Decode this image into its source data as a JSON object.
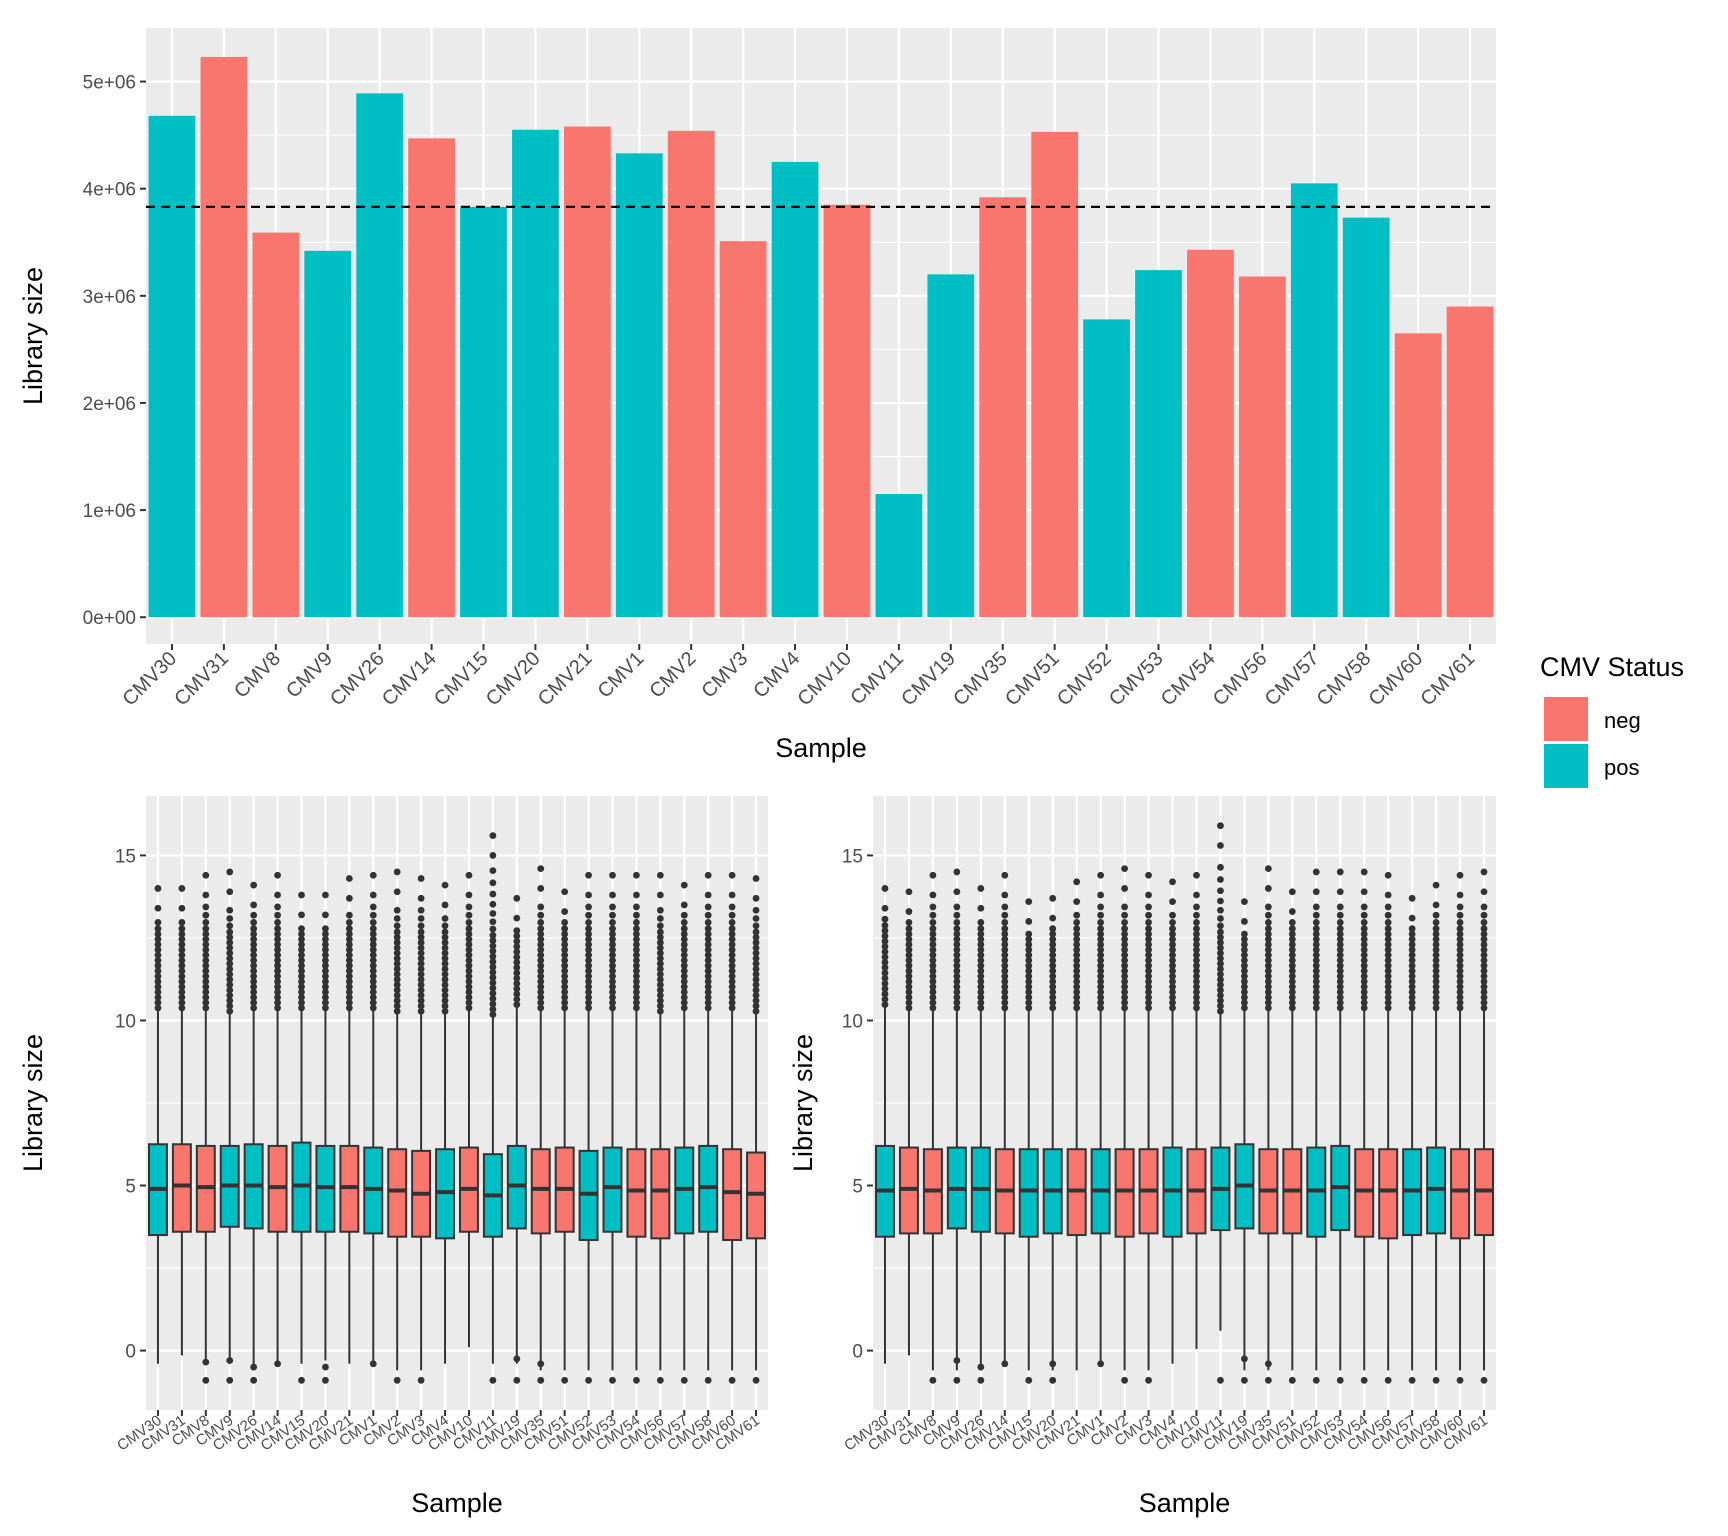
{
  "colors": {
    "neg": "#F8766D",
    "pos": "#00BFC4",
    "panel_bg": "#EBEBEB",
    "grid": "#FFFFFF",
    "text_dark": "#000000",
    "tick_text": "#4D4D4D",
    "box_line": "#333333"
  },
  "legend": {
    "title": "CMV Status",
    "items": [
      {
        "key": "neg",
        "label": "neg"
      },
      {
        "key": "pos",
        "label": "pos"
      }
    ]
  },
  "chart_data": [
    {
      "type": "bar",
      "xlabel": "Sample",
      "ylabel": "Library size",
      "ylim": [
        -250000,
        5500000
      ],
      "yticks": [
        0,
        1000000,
        2000000,
        3000000,
        4000000,
        5000000
      ],
      "ytick_labels": [
        "0e+00",
        "1e+06",
        "2e+06",
        "3e+06",
        "4e+06",
        "5e+06"
      ],
      "reference_line": {
        "y": 3830000,
        "style": "dashed"
      },
      "categories": [
        "CMV30",
        "CMV31",
        "CMV8",
        "CMV9",
        "CMV26",
        "CMV14",
        "CMV15",
        "CMV20",
        "CMV21",
        "CMV1",
        "CMV2",
        "CMV3",
        "CMV4",
        "CMV10",
        "CMV11",
        "CMV19",
        "CMV35",
        "CMV51",
        "CMV52",
        "CMV53",
        "CMV54",
        "CMV56",
        "CMV57",
        "CMV58",
        "CMV60",
        "CMV61"
      ],
      "values": [
        4680000,
        5230000,
        3590000,
        3420000,
        4890000,
        4470000,
        3830000,
        4550000,
        4580000,
        4330000,
        4540000,
        3510000,
        4250000,
        3850000,
        1150000,
        3200000,
        3920000,
        4530000,
        2780000,
        3240000,
        3430000,
        3180000,
        4050000,
        3730000,
        2650000,
        2900000
      ],
      "status": [
        "pos",
        "neg",
        "neg",
        "pos",
        "pos",
        "neg",
        "pos",
        "pos",
        "neg",
        "pos",
        "neg",
        "neg",
        "pos",
        "neg",
        "pos",
        "pos",
        "neg",
        "neg",
        "pos",
        "pos",
        "neg",
        "neg",
        "pos",
        "pos",
        "neg",
        "neg"
      ]
    },
    {
      "type": "box",
      "xlabel": "Sample",
      "ylabel": "Library size",
      "ylim": [
        -1.8,
        16.8
      ],
      "yticks": [
        0,
        5,
        10,
        15
      ],
      "ytick_labels": [
        "0",
        "5",
        "10",
        "15"
      ],
      "categories": [
        "CMV30",
        "CMV31",
        "CMV8",
        "CMV9",
        "CMV26",
        "CMV14",
        "CMV15",
        "CMV20",
        "CMV21",
        "CMV1",
        "CMV2",
        "CMV3",
        "CMV4",
        "CMV10",
        "CMV11",
        "CMV19",
        "CMV35",
        "CMV51",
        "CMV52",
        "CMV53",
        "CMV54",
        "CMV56",
        "CMV57",
        "CMV58",
        "CMV60",
        "CMV61"
      ],
      "status": [
        "pos",
        "neg",
        "neg",
        "pos",
        "pos",
        "neg",
        "pos",
        "pos",
        "neg",
        "pos",
        "neg",
        "neg",
        "pos",
        "neg",
        "pos",
        "pos",
        "neg",
        "neg",
        "pos",
        "pos",
        "neg",
        "neg",
        "pos",
        "pos",
        "neg",
        "neg"
      ],
      "q1": [
        3.5,
        3.6,
        3.6,
        3.75,
        3.7,
        3.6,
        3.6,
        3.6,
        3.6,
        3.55,
        3.45,
        3.45,
        3.4,
        3.6,
        3.45,
        3.7,
        3.55,
        3.6,
        3.35,
        3.6,
        3.45,
        3.4,
        3.55,
        3.6,
        3.35,
        3.4
      ],
      "median": [
        4.9,
        5.0,
        4.95,
        5.0,
        5.0,
        4.95,
        5.0,
        4.95,
        4.95,
        4.9,
        4.85,
        4.75,
        4.8,
        4.9,
        4.7,
        5.0,
        4.9,
        4.9,
        4.75,
        4.95,
        4.85,
        4.85,
        4.9,
        4.95,
        4.8,
        4.75
      ],
      "q3": [
        6.25,
        6.25,
        6.2,
        6.2,
        6.25,
        6.2,
        6.3,
        6.2,
        6.2,
        6.15,
        6.1,
        6.05,
        6.1,
        6.15,
        5.95,
        6.2,
        6.1,
        6.15,
        6.05,
        6.15,
        6.1,
        6.1,
        6.15,
        6.2,
        6.1,
        6.0
      ],
      "whisker_low": [
        -0.4,
        -0.15,
        -0.3,
        -0.4,
        -0.6,
        -0.4,
        -0.4,
        -0.3,
        -0.4,
        -0.4,
        -0.6,
        -0.6,
        -0.4,
        0.1,
        -0.4,
        -0.4,
        -0.6,
        -0.6,
        -0.6,
        -0.6,
        -0.6,
        -0.6,
        -0.6,
        -0.6,
        -0.6,
        -0.6
      ],
      "whisker_high": [
        10.3,
        10.3,
        10.3,
        10.2,
        10.3,
        10.3,
        10.3,
        10.3,
        10.3,
        10.3,
        10.2,
        10.2,
        10.2,
        10.3,
        10.1,
        10.4,
        10.3,
        10.3,
        10.3,
        10.3,
        10.3,
        10.2,
        10.3,
        10.3,
        10.3,
        10.2
      ],
      "outlier_max": [
        14.0,
        14.0,
        14.4,
        14.5,
        14.1,
        14.4,
        13.8,
        13.8,
        14.3,
        14.4,
        14.5,
        14.3,
        14.1,
        14.4,
        15.6,
        13.7,
        14.6,
        13.9,
        14.4,
        14.4,
        14.4,
        14.4,
        14.1,
        14.4,
        14.4,
        14.3
      ],
      "low_outliers": [
        [],
        [],
        [
          -0.35,
          -0.9
        ],
        [
          -0.3,
          -0.9
        ],
        [
          -0.5,
          -0.9
        ],
        [
          -0.4
        ],
        [
          -0.9
        ],
        [
          -0.5,
          -0.9
        ],
        [],
        [
          -0.4
        ],
        [
          -0.9
        ],
        [
          -0.9
        ],
        [],
        [],
        [
          -0.9
        ],
        [
          -0.25,
          -0.9
        ],
        [
          -0.4,
          -0.9
        ],
        [
          -0.9
        ],
        [
          -0.9
        ],
        [
          -0.9
        ],
        [
          -0.9
        ],
        [
          -0.9
        ],
        [
          -0.9
        ],
        [
          -0.9
        ],
        [
          -0.9
        ],
        [
          -0.9
        ]
      ]
    },
    {
      "type": "box",
      "xlabel": "Sample",
      "ylabel": "Library size",
      "ylim": [
        -1.8,
        16.8
      ],
      "yticks": [
        0,
        5,
        10,
        15
      ],
      "ytick_labels": [
        "0",
        "5",
        "10",
        "15"
      ],
      "categories": [
        "CMV30",
        "CMV31",
        "CMV8",
        "CMV9",
        "CMV26",
        "CMV14",
        "CMV15",
        "CMV20",
        "CMV21",
        "CMV1",
        "CMV2",
        "CMV3",
        "CMV4",
        "CMV10",
        "CMV11",
        "CMV19",
        "CMV35",
        "CMV51",
        "CMV52",
        "CMV53",
        "CMV54",
        "CMV56",
        "CMV57",
        "CMV58",
        "CMV60",
        "CMV61"
      ],
      "status": [
        "pos",
        "neg",
        "neg",
        "pos",
        "pos",
        "neg",
        "pos",
        "pos",
        "neg",
        "pos",
        "neg",
        "neg",
        "pos",
        "neg",
        "pos",
        "pos",
        "neg",
        "neg",
        "pos",
        "pos",
        "neg",
        "neg",
        "pos",
        "pos",
        "neg",
        "neg"
      ],
      "q1": [
        3.45,
        3.55,
        3.55,
        3.7,
        3.6,
        3.55,
        3.45,
        3.55,
        3.5,
        3.55,
        3.45,
        3.55,
        3.45,
        3.55,
        3.65,
        3.7,
        3.55,
        3.55,
        3.45,
        3.65,
        3.45,
        3.4,
        3.5,
        3.55,
        3.4,
        3.5
      ],
      "median": [
        4.85,
        4.9,
        4.85,
        4.9,
        4.9,
        4.85,
        4.85,
        4.85,
        4.85,
        4.85,
        4.85,
        4.85,
        4.85,
        4.85,
        4.9,
        5.0,
        4.85,
        4.85,
        4.85,
        4.95,
        4.85,
        4.85,
        4.85,
        4.9,
        4.85,
        4.85
      ],
      "q3": [
        6.2,
        6.15,
        6.1,
        6.15,
        6.15,
        6.1,
        6.1,
        6.1,
        6.1,
        6.1,
        6.1,
        6.1,
        6.15,
        6.1,
        6.15,
        6.25,
        6.1,
        6.1,
        6.15,
        6.2,
        6.1,
        6.1,
        6.1,
        6.15,
        6.1,
        6.1
      ],
      "whisker_low": [
        -0.4,
        -0.15,
        -0.6,
        -0.6,
        -0.6,
        -0.4,
        -0.6,
        -0.6,
        -0.6,
        -0.4,
        -0.6,
        -0.6,
        -0.4,
        0.05,
        0.6,
        -0.6,
        -0.6,
        -0.6,
        -0.6,
        -0.6,
        -0.6,
        -0.6,
        -0.6,
        -0.6,
        -0.6,
        -0.6
      ],
      "whisker_high": [
        10.4,
        10.3,
        10.3,
        10.3,
        10.3,
        10.3,
        10.3,
        10.3,
        10.3,
        10.3,
        10.3,
        10.3,
        10.3,
        10.3,
        10.2,
        10.3,
        10.3,
        10.3,
        10.3,
        10.3,
        10.3,
        10.3,
        10.3,
        10.3,
        10.3,
        10.3
      ],
      "outlier_max": [
        14.0,
        13.9,
        14.4,
        14.5,
        14.0,
        14.4,
        13.6,
        13.7,
        14.2,
        14.4,
        14.6,
        14.4,
        14.2,
        14.4,
        15.9,
        13.6,
        14.6,
        13.9,
        14.5,
        14.5,
        14.5,
        14.4,
        13.7,
        14.1,
        14.4,
        14.5
      ],
      "low_outliers": [
        [],
        [],
        [
          -0.9
        ],
        [
          -0.3,
          -0.9
        ],
        [
          -0.5,
          -0.9
        ],
        [
          -0.4
        ],
        [
          -0.9
        ],
        [
          -0.4,
          -0.9
        ],
        [],
        [
          -0.4
        ],
        [
          -0.9
        ],
        [
          -0.9
        ],
        [],
        [],
        [
          -0.9
        ],
        [
          -0.25,
          -0.9
        ],
        [
          -0.4,
          -0.9
        ],
        [
          -0.9
        ],
        [
          -0.9
        ],
        [
          -0.9
        ],
        [
          -0.9
        ],
        [
          -0.9
        ],
        [
          -0.9
        ],
        [
          -0.9
        ],
        [
          -0.9
        ],
        [
          -0.9
        ]
      ]
    }
  ]
}
